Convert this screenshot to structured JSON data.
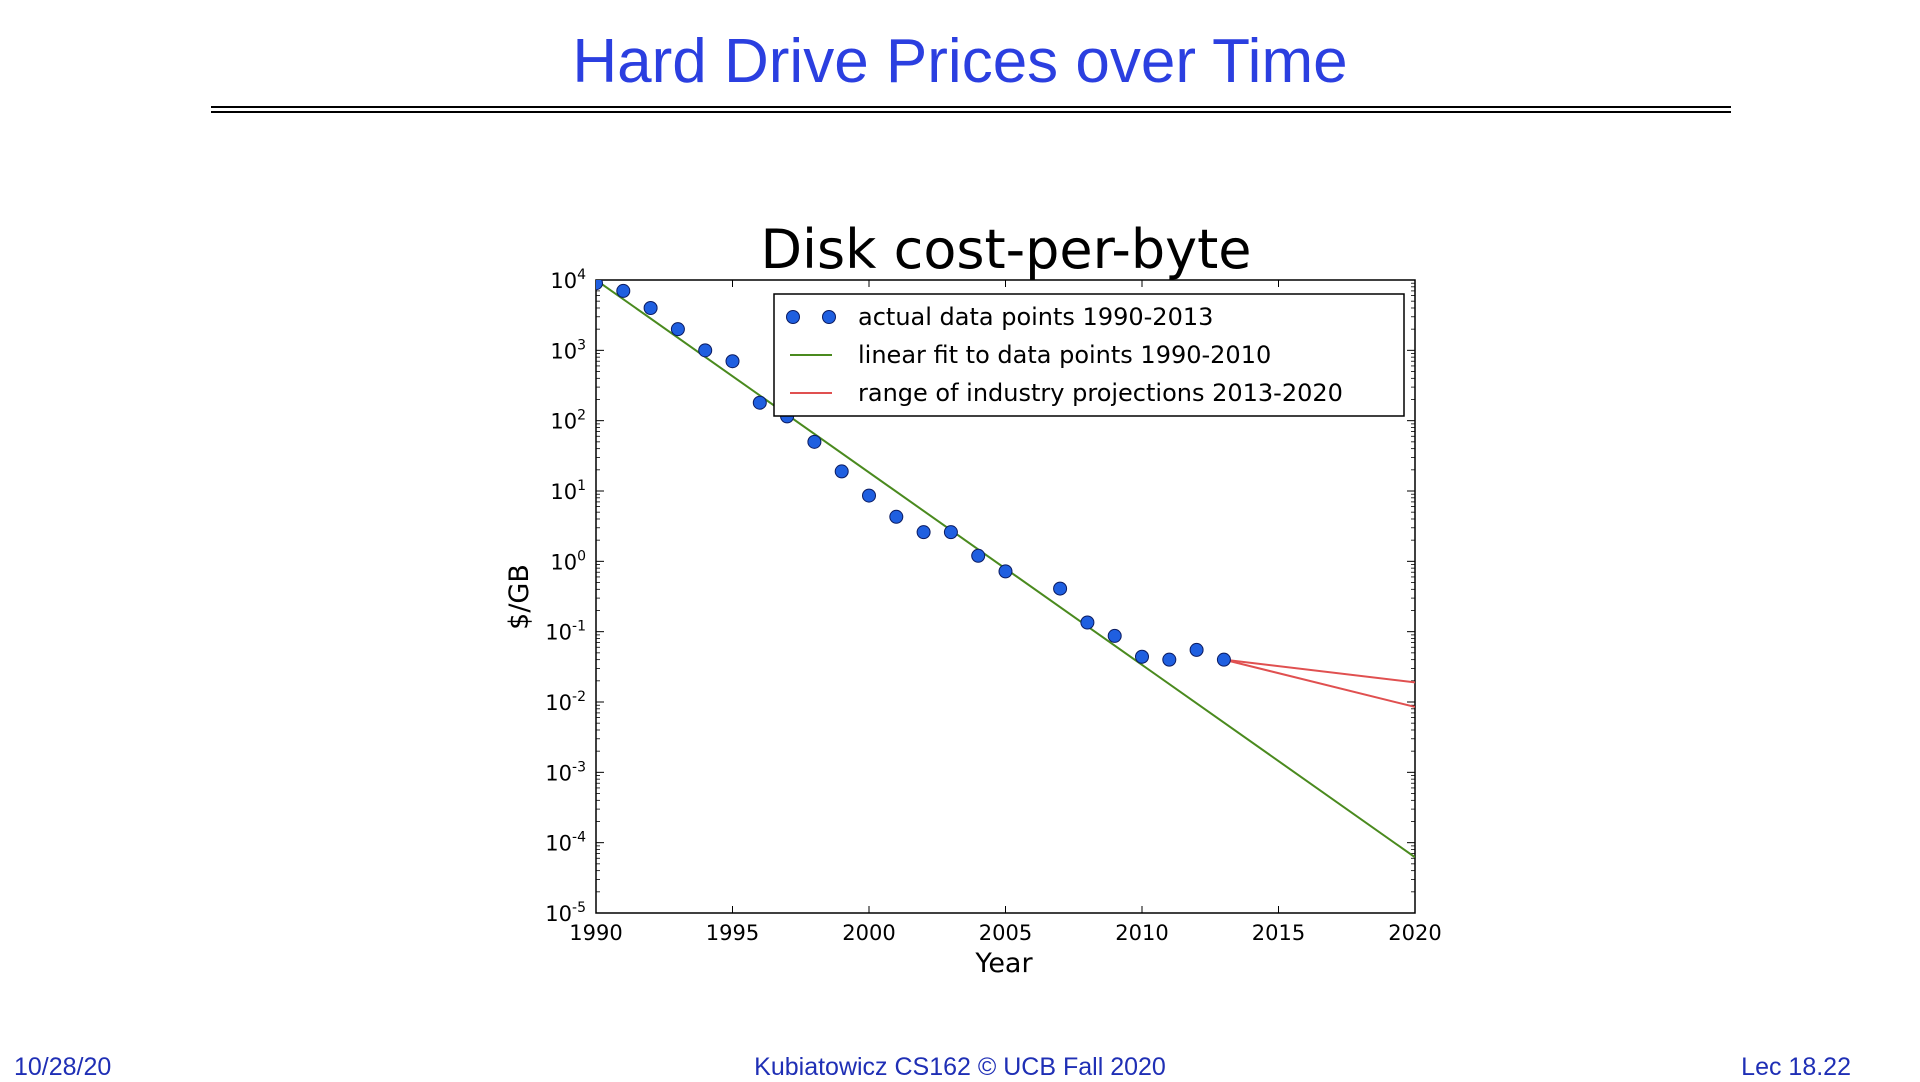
{
  "slide": {
    "title": "Hard Drive Prices over Time",
    "footer_date": "10/28/20",
    "footer_course": "Kubiatowicz CS162 © UCB Fall 2020",
    "footer_lecture": "Lec 18.22"
  },
  "colors": {
    "title": "#2b3fe0",
    "footer": "#1f2fb5",
    "points": "#1f5fe0",
    "fit": "#4a8a1e",
    "projection": "#e05050"
  },
  "chart_data": {
    "type": "scatter",
    "title": "Disk cost-per-byte",
    "xlabel": "Year",
    "ylabel": "$/GB",
    "xlim": [
      1990,
      2020
    ],
    "ylim_exponents": [
      -5,
      4
    ],
    "yscale": "log",
    "x_ticks": [
      "1990",
      "1995",
      "2000",
      "2005",
      "2010",
      "2015",
      "2020"
    ],
    "y_ticks": [
      {
        "base": "10",
        "exp": "4"
      },
      {
        "base": "10",
        "exp": "3"
      },
      {
        "base": "10",
        "exp": "2"
      },
      {
        "base": "10",
        "exp": "1"
      },
      {
        "base": "10",
        "exp": "0"
      },
      {
        "base": "10",
        "exp": "-1"
      },
      {
        "base": "10",
        "exp": "-2"
      },
      {
        "base": "10",
        "exp": "-3"
      },
      {
        "base": "10",
        "exp": "-4"
      },
      {
        "base": "10",
        "exp": "-5"
      }
    ],
    "legend_position": "top-right",
    "legend": [
      "actual data points 1990-2013",
      "linear fit to data points 1990-2010",
      "range of industry projections 2013-2020"
    ],
    "series": [
      {
        "name": "actual data points 1990-2013",
        "kind": "points",
        "x": [
          1990,
          1991,
          1992,
          1993,
          1994,
          1995,
          1996,
          1997,
          1998,
          1999,
          2000,
          2001,
          2002,
          2003,
          2004,
          2005,
          2007,
          2008,
          2009,
          2010,
          2011,
          2012,
          2013
        ],
        "y": [
          9000,
          7000,
          4000,
          2000,
          1000,
          700,
          180,
          115,
          50,
          19,
          8.6,
          4.3,
          2.6,
          2.6,
          1.2,
          0.72,
          0.41,
          0.135,
          0.087,
          0.044,
          0.04,
          0.055,
          0.04
        ]
      },
      {
        "name": "linear fit to data points 1990-2010",
        "kind": "line",
        "x": [
          1990,
          2020
        ],
        "y": [
          10000,
          6.2e-05
        ]
      },
      {
        "name": "range of industry projections 2013-2020",
        "kind": "range",
        "lines": [
          {
            "x": [
              2013,
              2020
            ],
            "y": [
              0.04,
              0.019
            ]
          },
          {
            "x": [
              2013,
              2020
            ],
            "y": [
              0.04,
              0.0085
            ]
          }
        ]
      }
    ]
  }
}
